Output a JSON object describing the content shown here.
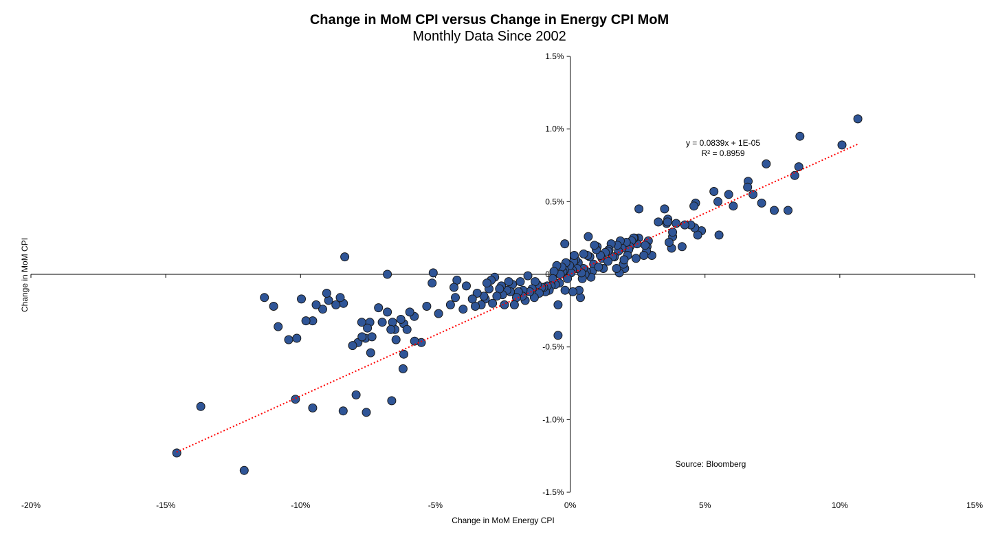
{
  "chart_data": {
    "type": "scatter",
    "title": "Change in MoM CPI versus Change in Energy CPI MoM",
    "subtitle": "Monthly  Data Since 2002",
    "xlabel": "Change in MoM Energy CPI",
    "ylabel": "Change in MoM CPI",
    "xlim": [
      -0.2,
      0.15
    ],
    "ylim": [
      -0.015,
      0.015
    ],
    "x_ticks": [
      -0.2,
      -0.15,
      -0.1,
      -0.05,
      0.0,
      0.05,
      0.1,
      0.15
    ],
    "x_tick_labels": [
      "-20%",
      "-15%",
      "-10%",
      "-5%",
      "0%",
      "5%",
      "10%",
      "15%"
    ],
    "y_ticks": [
      -0.015,
      -0.01,
      -0.005,
      0.0,
      0.005,
      0.01,
      0.015
    ],
    "y_tick_labels": [
      "-1.5%",
      "-1.0%",
      "-0.5%",
      "0.0%",
      "0.5%",
      "1.0%",
      "1.5%"
    ],
    "grid": false,
    "marker_color": "#2F5597",
    "marker_edge_color": "#1a1a1a",
    "trendline": {
      "color": "#FF0000",
      "style": "dotted",
      "slope": 0.0839,
      "intercept": 1e-05,
      "x_range": [
        -0.146,
        0.107
      ],
      "equation_label": "y = 0.0839x + 1E-05",
      "r2_label": "R² = 0.8959"
    },
    "source_note": "Source: Bloomberg",
    "points": [
      [
        0.1067,
        0.0107
      ],
      [
        0.1008,
        0.0089
      ],
      [
        0.0852,
        0.0095
      ],
      [
        0.0848,
        0.0074
      ],
      [
        0.0833,
        0.0068
      ],
      [
        0.0808,
        0.0044
      ],
      [
        0.0757,
        0.0044
      ],
      [
        0.0727,
        0.0076
      ],
      [
        0.071,
        0.0049
      ],
      [
        0.0678,
        0.0055
      ],
      [
        0.066,
        0.0064
      ],
      [
        0.0658,
        0.006
      ],
      [
        0.0605,
        0.0047
      ],
      [
        0.0588,
        0.0055
      ],
      [
        0.0548,
        0.005
      ],
      [
        0.0552,
        0.0027
      ],
      [
        0.0533,
        0.0057
      ],
      [
        0.0487,
        0.003
      ],
      [
        0.0473,
        0.0027
      ],
      [
        0.0465,
        0.0049
      ],
      [
        0.0459,
        0.0047
      ],
      [
        0.0462,
        0.0032
      ],
      [
        0.0447,
        0.0034
      ],
      [
        0.0425,
        0.0034
      ],
      [
        0.0415,
        0.0019
      ],
      [
        0.0393,
        0.0035
      ],
      [
        0.038,
        0.0026
      ],
      [
        0.038,
        0.0029
      ],
      [
        0.0376,
        0.0018
      ],
      [
        0.0367,
        0.0022
      ],
      [
        0.0362,
        0.0038
      ],
      [
        0.0358,
        0.0035
      ],
      [
        0.0361,
        0.0036
      ],
      [
        0.035,
        0.0045
      ],
      [
        0.0327,
        0.0036
      ],
      [
        0.0303,
        0.0013
      ],
      [
        0.029,
        0.0023
      ],
      [
        0.0285,
        0.0019
      ],
      [
        0.0283,
        0.0016
      ],
      [
        0.0278,
        0.002
      ],
      [
        0.0273,
        0.0013
      ],
      [
        0.0255,
        0.0045
      ],
      [
        0.0254,
        0.0025
      ],
      [
        0.0248,
        0.0021
      ],
      [
        0.0244,
        0.0011
      ],
      [
        0.0238,
        0.0025
      ],
      [
        0.0235,
        0.0025
      ],
      [
        0.0228,
        0.0023
      ],
      [
        0.0221,
        0.0019
      ],
      [
        0.0217,
        0.0017
      ],
      [
        0.0213,
        0.0013
      ],
      [
        0.0208,
        0.0022
      ],
      [
        0.0202,
        0.0004
      ],
      [
        0.0197,
        0.0007
      ],
      [
        0.0192,
        0.0018
      ],
      [
        0.0186,
        0.0023
      ],
      [
        0.0182,
        0.0001
      ],
      [
        0.0179,
        0.0016
      ],
      [
        0.0175,
        0.002
      ],
      [
        0.0172,
        0.0004
      ],
      [
        0.0164,
        0.0012
      ],
      [
        0.0157,
        0.0012
      ],
      [
        0.0152,
        0.0021
      ],
      [
        0.0144,
        0.0017
      ],
      [
        0.014,
        0.0016
      ],
      [
        0.013,
        0.0015
      ],
      [
        0.0123,
        0.0004
      ],
      [
        0.0118,
        0.0011
      ],
      [
        0.0112,
        0.0013
      ],
      [
        0.01,
        0.0019
      ],
      [
        0.0097,
        0.0017
      ],
      [
        0.0093,
        0.0005
      ],
      [
        0.009,
        0.002
      ],
      [
        0.0087,
        0.0007
      ],
      [
        0.0082,
        0.0002
      ],
      [
        0.0077,
        -0.0002
      ],
      [
        0.0073,
        0.0012
      ],
      [
        0.0067,
        0.0026
      ],
      [
        0.0064,
        0.0013
      ],
      [
        0.006,
        0.0002
      ],
      [
        0.0055,
        0.0
      ],
      [
        0.0049,
        0.0004
      ],
      [
        0.0045,
        -0.0003
      ],
      [
        0.0042,
        0.0001
      ],
      [
        0.0038,
        -0.0016
      ],
      [
        0.0033,
        -0.0011
      ],
      [
        0.003,
        0.0008
      ],
      [
        0.0025,
        0.0004
      ],
      [
        0.002,
        0.001
      ],
      [
        0.0013,
        0.0009
      ],
      [
        0.001,
        -0.0012
      ],
      [
        0.0008,
        0.0003
      ],
      [
        0.0003,
        0.0001
      ],
      [
        -0.0002,
        0.0006
      ],
      [
        -0.001,
        -0.0003
      ],
      [
        -0.0016,
        0.0008
      ],
      [
        -0.0019,
        -0.0011
      ],
      [
        -0.0021,
        0.0003
      ],
      [
        -0.0027,
        0.0002
      ],
      [
        -0.0031,
        0.0005
      ],
      [
        -0.0037,
        0.0
      ],
      [
        -0.004,
        -0.0006
      ],
      [
        -0.0045,
        -0.0021
      ],
      [
        -0.005,
        0.0006
      ],
      [
        -0.0055,
        -0.0007
      ],
      [
        -0.006,
        0.0002
      ],
      [
        -0.0065,
        -0.0003
      ],
      [
        -0.0071,
        -0.0008
      ],
      [
        -0.0078,
        -0.0011
      ],
      [
        -0.0085,
        -0.0008
      ],
      [
        -0.0092,
        -0.0012
      ],
      [
        -0.0098,
        -0.0009
      ],
      [
        -0.0106,
        -0.0009
      ],
      [
        -0.0115,
        -0.0013
      ],
      [
        -0.0122,
        -0.0007
      ],
      [
        -0.013,
        -0.0005
      ],
      [
        -0.0133,
        -0.0016
      ],
      [
        -0.0141,
        -0.001
      ],
      [
        -0.015,
        -0.0012
      ],
      [
        -0.0157,
        -0.0001
      ],
      [
        -0.0167,
        -0.0018
      ],
      [
        -0.0175,
        -0.0011
      ],
      [
        -0.0177,
        -0.0015
      ],
      [
        -0.0185,
        -0.0005
      ],
      [
        -0.0192,
        -0.0012
      ],
      [
        -0.0199,
        -0.0016
      ],
      [
        -0.0207,
        -0.0021
      ],
      [
        -0.0214,
        -0.0007
      ],
      [
        -0.0222,
        -0.0012
      ],
      [
        -0.0228,
        -0.0005
      ],
      [
        -0.0235,
        -0.0011
      ],
      [
        -0.0244,
        -0.0021
      ],
      [
        -0.0251,
        -0.0014
      ],
      [
        -0.0255,
        -0.0008
      ],
      [
        -0.0262,
        -0.001
      ],
      [
        -0.0272,
        -0.0015
      ],
      [
        -0.028,
        -0.0002
      ],
      [
        -0.0288,
        -0.002
      ],
      [
        -0.0293,
        -0.0004
      ],
      [
        -0.0301,
        -0.001
      ],
      [
        -0.0309,
        -0.0006
      ],
      [
        -0.0315,
        -0.0017
      ],
      [
        -0.032,
        -0.0015
      ],
      [
        -0.033,
        -0.0021
      ],
      [
        -0.0345,
        -0.0013
      ],
      [
        -0.0352,
        -0.0022
      ],
      [
        -0.0363,
        -0.0017
      ],
      [
        -0.0385,
        -0.0008
      ],
      [
        -0.0397,
        -0.0024
      ],
      [
        -0.042,
        -0.0004
      ],
      [
        -0.0426,
        -0.0016
      ],
      [
        -0.0431,
        -0.0009
      ],
      [
        -0.0444,
        -0.0021
      ],
      [
        -0.0488,
        -0.0027
      ],
      [
        -0.0508,
        0.0001
      ],
      [
        -0.0512,
        -0.0006
      ],
      [
        -0.0532,
        -0.0022
      ],
      [
        -0.0578,
        -0.0029
      ],
      [
        -0.0595,
        -0.0026
      ],
      [
        -0.0617,
        -0.0034
      ],
      [
        -0.0628,
        -0.0031
      ],
      [
        -0.0646,
        -0.0045
      ],
      [
        -0.065,
        -0.0038
      ],
      [
        -0.0659,
        -0.0033
      ],
      [
        -0.0665,
        -0.0038
      ],
      [
        -0.0678,
        -0.0026
      ],
      [
        -0.0697,
        -0.0033
      ],
      [
        -0.0711,
        -0.0023
      ],
      [
        -0.0743,
        -0.0033
      ],
      [
        -0.0752,
        -0.0037
      ],
      [
        -0.0759,
        -0.0044
      ],
      [
        -0.0773,
        -0.0033
      ],
      [
        -0.0787,
        -0.0047
      ],
      [
        -0.0807,
        -0.0049
      ],
      [
        -0.0836,
        0.0012
      ],
      [
        -0.0841,
        -0.002
      ],
      [
        -0.0853,
        -0.0016
      ],
      [
        -0.0869,
        -0.0021
      ],
      [
        -0.0896,
        -0.0018
      ],
      [
        -0.0903,
        -0.0013
      ],
      [
        -0.0918,
        -0.0024
      ],
      [
        -0.0942,
        -0.0021
      ],
      [
        -0.0955,
        -0.0032
      ],
      [
        -0.098,
        -0.0032
      ],
      [
        -0.0997,
        -0.0017
      ],
      [
        -0.1014,
        -0.0044
      ],
      [
        -0.1044,
        -0.0045
      ],
      [
        -0.1083,
        -0.0036
      ],
      [
        -0.11,
        -0.0022
      ],
      [
        -0.1134,
        -0.0016
      ],
      [
        -0.0552,
        -0.0047
      ],
      [
        -0.0577,
        -0.0046
      ],
      [
        -0.0605,
        -0.0038
      ],
      [
        -0.0617,
        -0.0055
      ],
      [
        -0.062,
        -0.0065
      ],
      [
        -0.0662,
        -0.0087
      ],
      [
        -0.0735,
        -0.0043
      ],
      [
        -0.074,
        -0.0054
      ],
      [
        -0.0756,
        -0.0095
      ],
      [
        -0.0772,
        -0.0043
      ],
      [
        -0.0794,
        -0.0083
      ],
      [
        -0.0842,
        -0.0094
      ],
      [
        -0.0955,
        -0.0092
      ],
      [
        -0.1019,
        -0.0086
      ],
      [
        -0.1209,
        -0.0135
      ],
      [
        -0.137,
        -0.0091
      ],
      [
        -0.1459,
        -0.0123
      ],
      [
        -0.0678,
        0.0
      ],
      [
        -0.0045,
        -0.0042
      ],
      [
        -0.002,
        0.0021
      ],
      [
        0.0015,
        0.0013
      ],
      [
        0.005,
        0.0014
      ],
      [
        0.0105,
        0.0005
      ],
      [
        0.014,
        0.0009
      ],
      [
        0.02,
        0.001
      ]
    ]
  }
}
